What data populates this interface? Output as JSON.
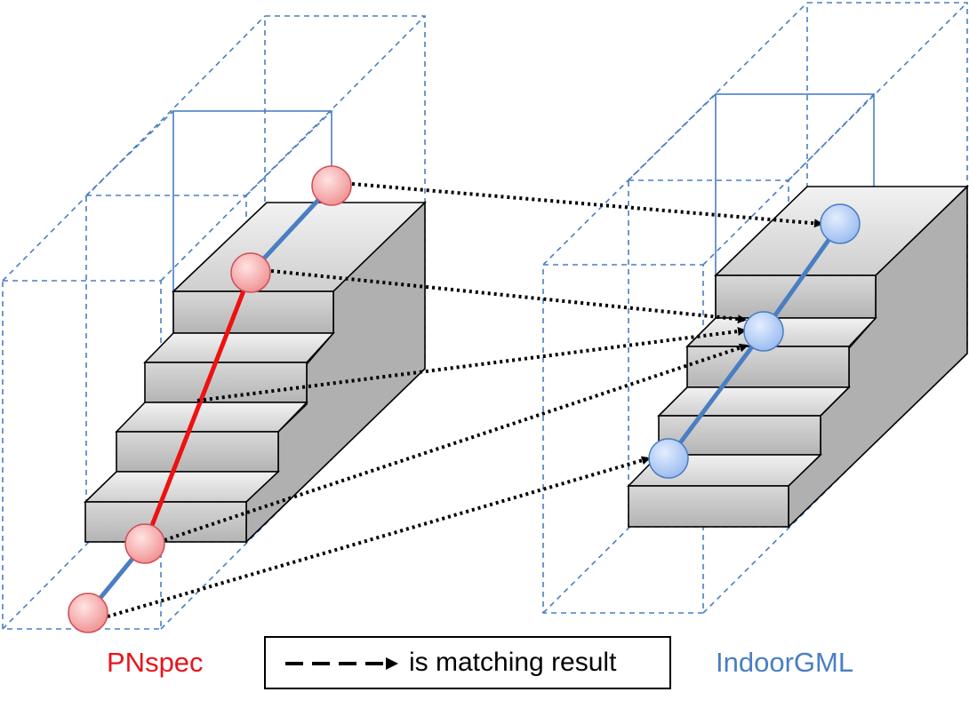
{
  "labels": {
    "left_model": "PNspec",
    "right_model": "IndoorGML"
  },
  "legend": {
    "text": "is matching result"
  },
  "colors": {
    "left_model": "#e8141c",
    "right_model": "#4a7ec2",
    "left_node_fill": "#f7a3a3",
    "right_node_fill": "#b5cdf5",
    "stair_face": "#c6c6c6",
    "stair_side": "#a9a9a9",
    "stair_top": "#dcdcdc",
    "space_box": "#4a7ec2",
    "matching_arrow": "#000000"
  }
}
